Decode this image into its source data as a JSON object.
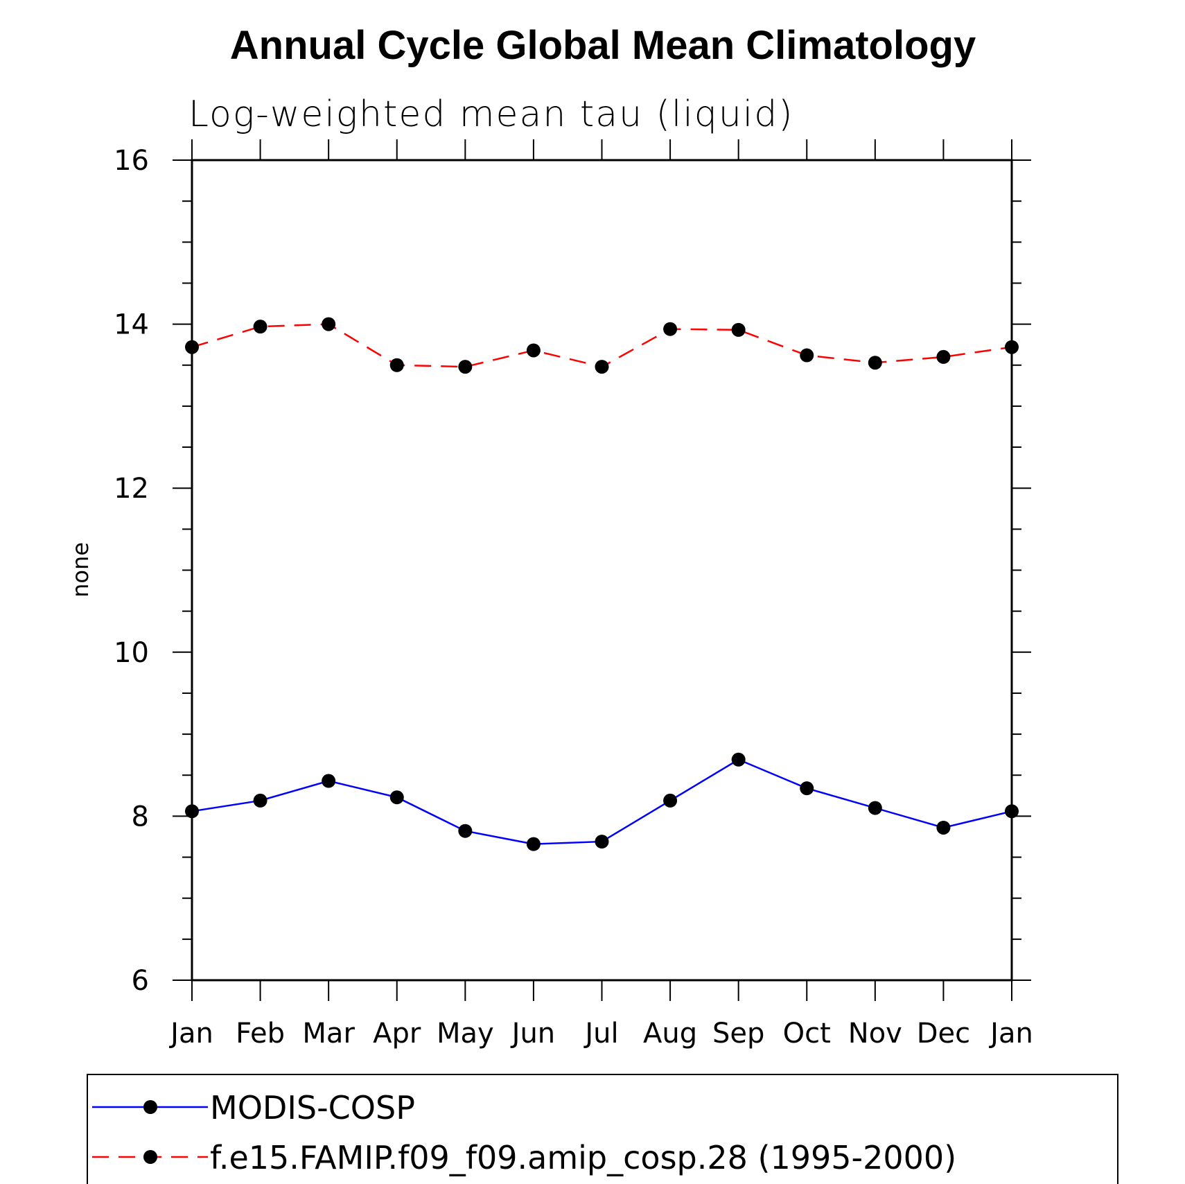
{
  "chart_data": {
    "type": "line",
    "title": "Annual Cycle Global Mean Climatology",
    "subtitle": "Log-weighted mean tau (liquid)",
    "xlabel": "",
    "ylabel": "none",
    "categories": [
      "Jan",
      "Feb",
      "Mar",
      "Apr",
      "May",
      "Jun",
      "Jul",
      "Aug",
      "Sep",
      "Oct",
      "Nov",
      "Dec",
      "Jan"
    ],
    "ylim": [
      6,
      16
    ],
    "yticks": [
      "6",
      "8",
      "10",
      "12",
      "14",
      "16"
    ],
    "series": [
      {
        "name": "MODIS-COSP",
        "color": "#0000ff",
        "dash": "solid",
        "values": [
          8.06,
          8.19,
          8.43,
          8.23,
          7.82,
          7.66,
          7.69,
          8.19,
          8.69,
          8.34,
          8.1,
          7.86,
          8.06
        ]
      },
      {
        "name": "f.e15.FAMIP.f09_f09.amip_cosp.28 (1995-2000)",
        "color": "#ff0000",
        "dash": "dashed",
        "values": [
          13.72,
          13.97,
          14.0,
          13.5,
          13.48,
          13.68,
          13.48,
          13.94,
          13.93,
          13.62,
          13.53,
          13.6,
          13.72
        ]
      }
    ],
    "legend_position": "bottom"
  }
}
